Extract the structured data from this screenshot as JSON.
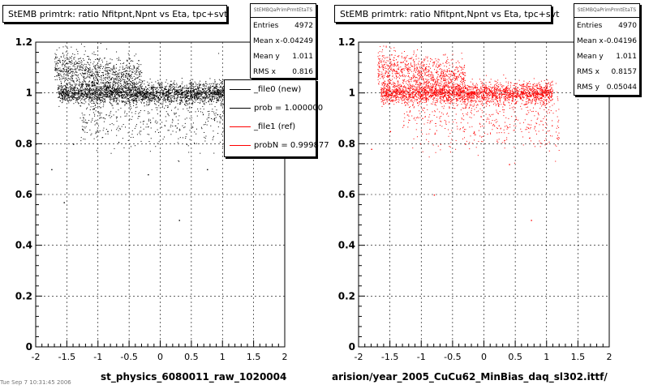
{
  "chart_data": [
    {
      "type": "scatter",
      "title": "StEMB primtrk: ratio Nfitpnt,Npnt vs Eta, tpc+svt",
      "xlabel": "st_physics_6080011_raw_1020004",
      "ylabel": "",
      "xlim": [
        -2,
        2
      ],
      "ylim": [
        0,
        1.2
      ],
      "xticks": [
        "-2",
        "-1.5",
        "-1",
        "-0.5",
        "0",
        "0.5",
        "1",
        "1.5",
        "2"
      ],
      "yticks": [
        "0",
        "0.2",
        "0.4",
        "0.6",
        "0.8",
        "1",
        "1.2"
      ],
      "grid": true,
      "marker_color": "#000000",
      "bands": [
        {
          "x_range": [
            -1.65,
            1.1
          ],
          "y_center": 1.0,
          "y_spread": 0.02,
          "density": "high"
        },
        {
          "x_range": [
            -1.7,
            -0.3
          ],
          "y_center": 1.08,
          "y_spread": 0.06,
          "density": "medium"
        },
        {
          "x_range": [
            -1.3,
            1.2
          ],
          "y_center": 0.9,
          "y_spread": 0.06,
          "density": "low"
        }
      ],
      "outliers": [
        [
          -2.0,
          0.8
        ],
        [
          -1.75,
          0.7
        ],
        [
          -0.2,
          0.68
        ],
        [
          0.75,
          0.7
        ],
        [
          -1.55,
          0.57
        ],
        [
          0.3,
          0.5
        ],
        [
          -1.4,
          0.8
        ],
        [
          -0.85,
          0.85
        ]
      ],
      "stats": {
        "name": "StEMBQaPrimPrmtEtaTS",
        "entries_label": "Entries",
        "entries": "4972",
        "meanx_label": "Mean x",
        "meanx": "-0.04249",
        "meany_label": "Mean y",
        "meany": "1.011",
        "rmsx_label": "RMS x",
        "rmsx": "0.816"
      },
      "legend": [
        {
          "label": "_file0 (new)",
          "color": "#000000"
        },
        {
          "label": "prob = 1.000000",
          "color": "#000000"
        },
        {
          "label": "_file1 (ref)",
          "color": "#ff0000"
        },
        {
          "label": "probN = 0.999877",
          "color": "#ff0000"
        }
      ]
    },
    {
      "type": "scatter",
      "title": "StEMB primtrk: ratio Nfitpnt,Npnt vs Eta, tpc+svt",
      "xlabel": "arision/year_2005_CuCu62_MinBias_daq_sl302.ittf/",
      "ylabel": "",
      "xlim": [
        -2,
        2
      ],
      "ylim": [
        0,
        1.2
      ],
      "xticks": [
        "-2",
        "-1.5",
        "-1",
        "-0.5",
        "0",
        "0.5",
        "1",
        "1.5",
        "2"
      ],
      "yticks": [
        "0",
        "0.2",
        "0.4",
        "0.6",
        "0.8",
        "1",
        "1.2"
      ],
      "grid": true,
      "marker_color": "#ff0000",
      "bands": [
        {
          "x_range": [
            -1.65,
            1.1
          ],
          "y_center": 1.0,
          "y_spread": 0.02,
          "density": "high"
        },
        {
          "x_range": [
            -1.7,
            -0.3
          ],
          "y_center": 1.08,
          "y_spread": 0.06,
          "density": "medium"
        },
        {
          "x_range": [
            -1.3,
            1.2
          ],
          "y_center": 0.9,
          "y_spread": 0.06,
          "density": "low"
        }
      ],
      "outliers": [
        [
          -1.8,
          0.78
        ],
        [
          -0.8,
          0.6
        ],
        [
          0.75,
          0.5
        ],
        [
          -1.5,
          0.85
        ],
        [
          0.4,
          0.72
        ],
        [
          -0.3,
          0.8
        ]
      ],
      "stats": {
        "name": "StEMBQaPrimPrmtEtaTS",
        "entries_label": "Entries",
        "entries": "4970",
        "meanx_label": "Mean x",
        "meanx": "-0.04196",
        "meany_label": "Mean y",
        "meany": "1.011",
        "rmsx_label": "RMS x",
        "rmsx": "0.8157",
        "rmsy_label": "RMS y",
        "rmsy": "0.05044"
      }
    }
  ],
  "footer": {
    "text": "Tue Sep 7 10:31:45 2006"
  }
}
